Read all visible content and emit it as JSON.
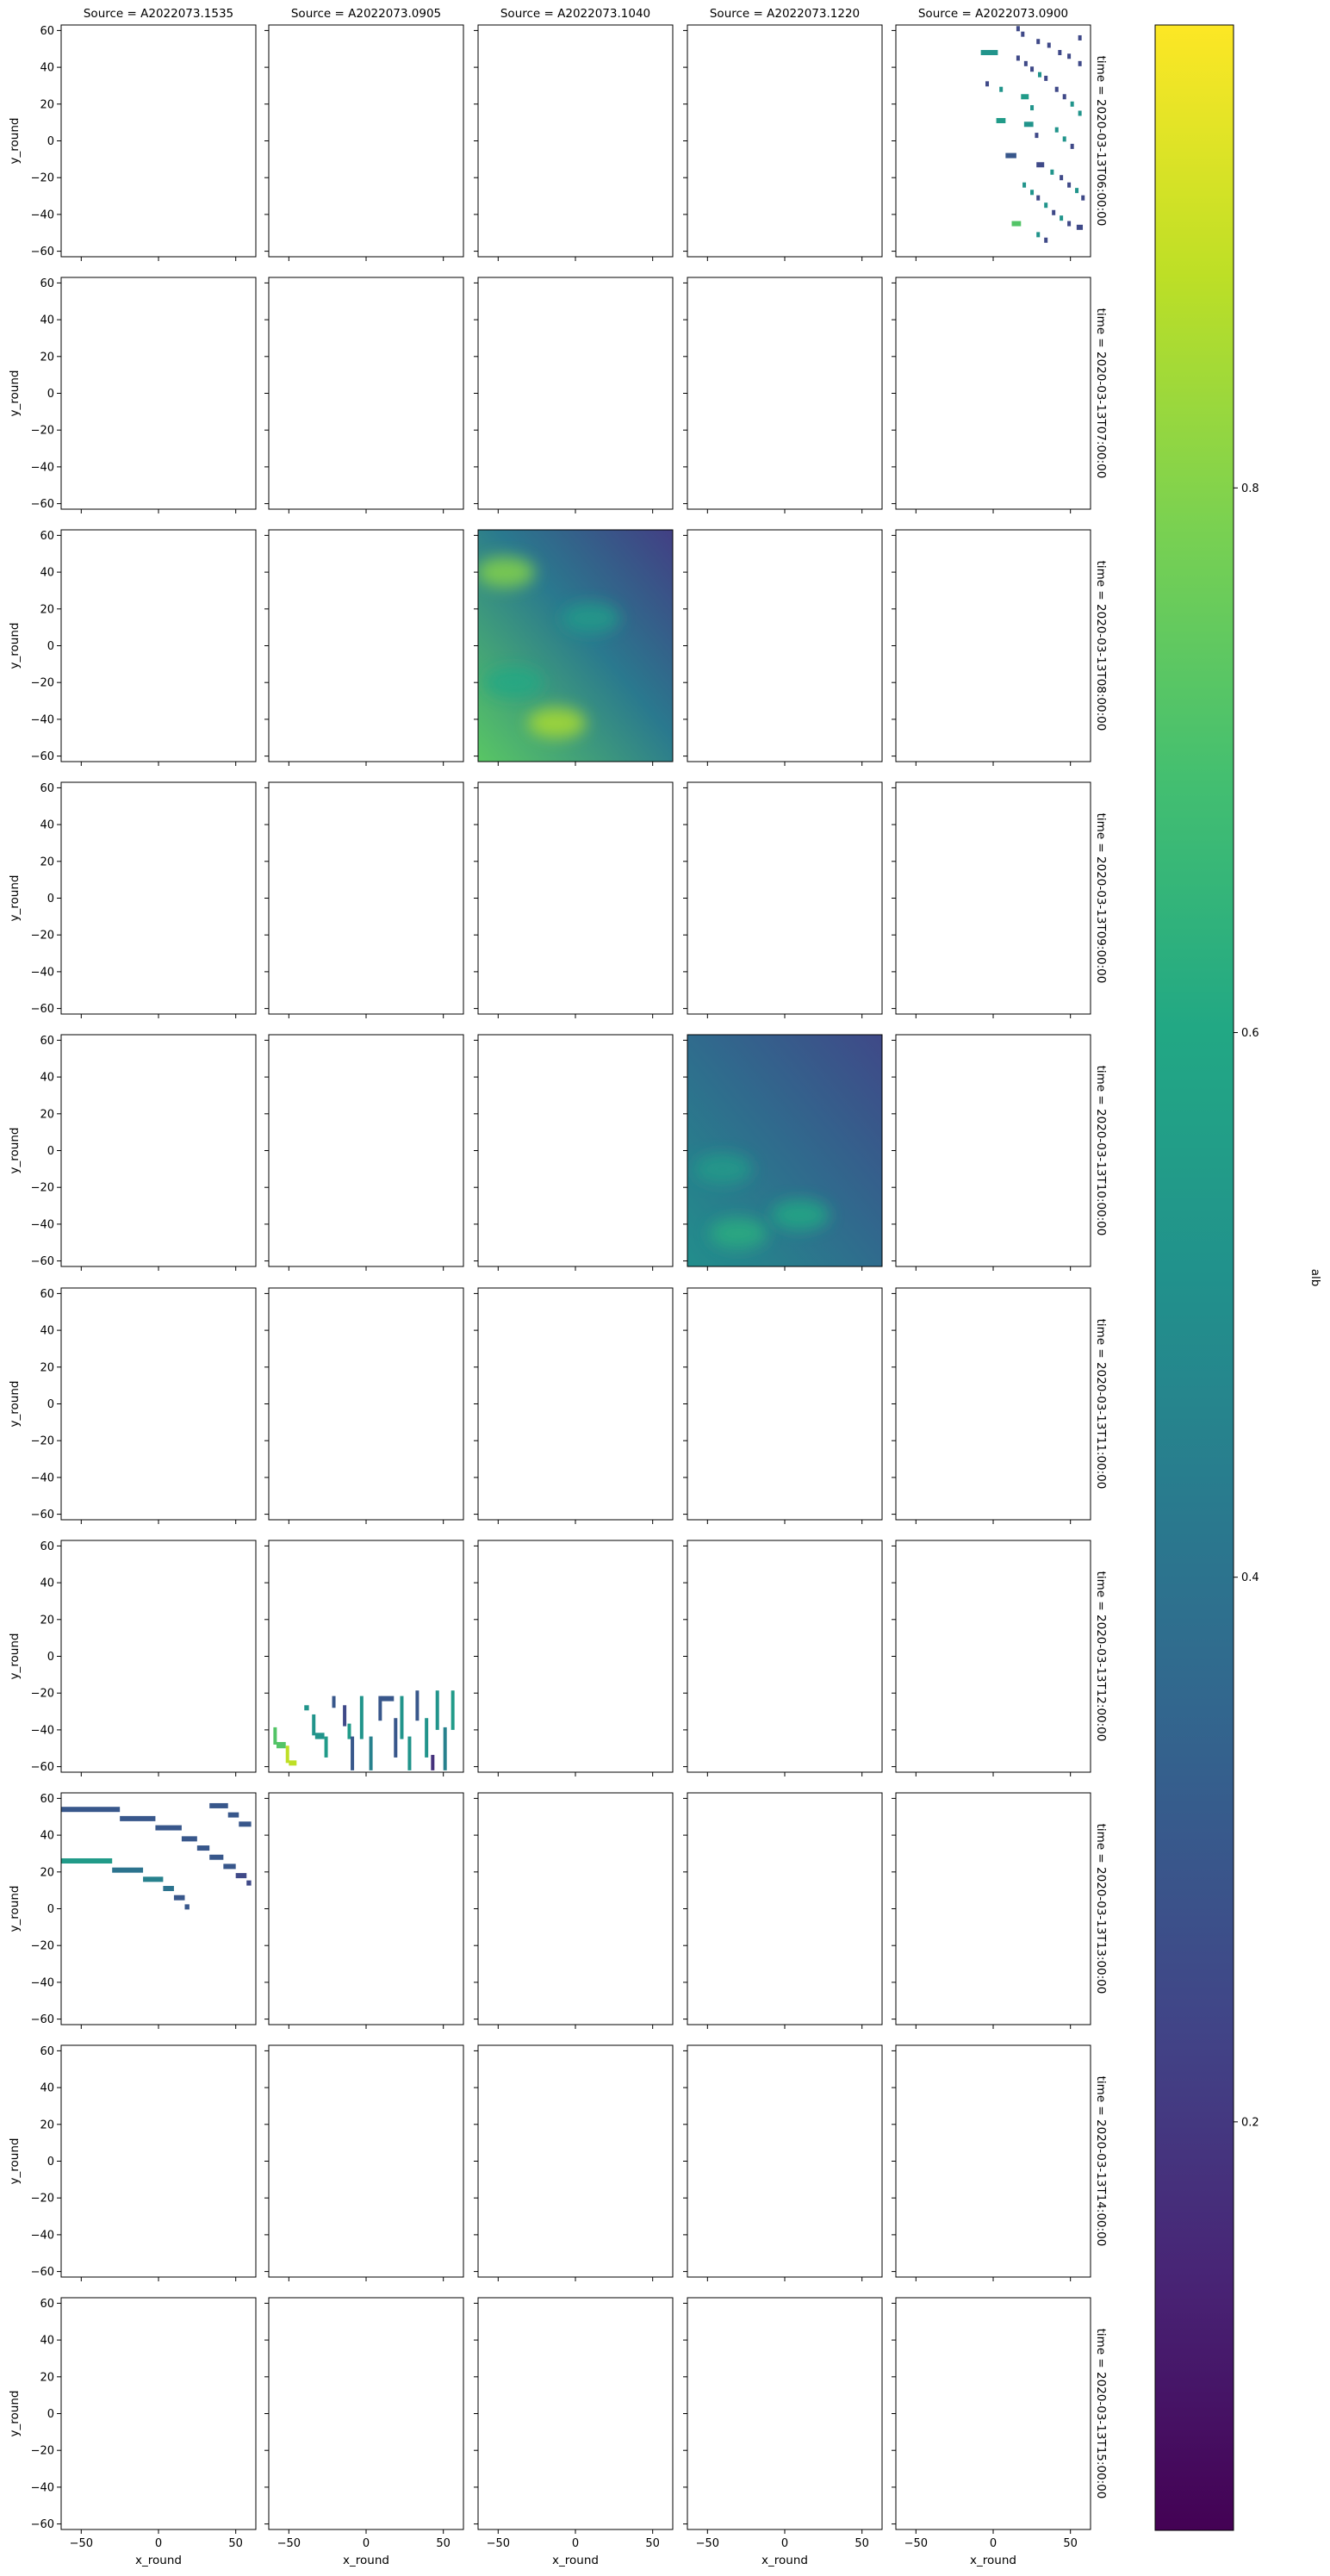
{
  "figure": {
    "col_title_prefix": "Source = ",
    "row_title_prefix": "time = ",
    "colorbar_label": "alb"
  },
  "chart_data": {
    "type": "heatmap",
    "facet_cols": [
      "A2022073.1535",
      "A2022073.0905",
      "A2022073.1040",
      "A2022073.1220",
      "A2022073.0900"
    ],
    "facet_rows": [
      "2020-03-13T06:00:00",
      "2020-03-13T07:00:00",
      "2020-03-13T08:00:00",
      "2020-03-13T09:00:00",
      "2020-03-13T10:00:00",
      "2020-03-13T11:00:00",
      "2020-03-13T12:00:00",
      "2020-03-13T13:00:00",
      "2020-03-13T14:00:00",
      "2020-03-13T15:00:00"
    ],
    "xlabel": "x_round",
    "ylabel": "y_round",
    "xlim": [
      -63,
      63
    ],
    "ylim": [
      -63,
      63
    ],
    "xticks": [
      -50,
      0,
      50
    ],
    "yticks": [
      60,
      40,
      20,
      0,
      -20,
      -40,
      -60
    ],
    "colorbar": {
      "label": "alb",
      "range": [
        0.05,
        0.97
      ],
      "ticks": [
        0.2,
        0.4,
        0.6,
        0.8
      ],
      "colormap": "viridis"
    },
    "panels_with_data": [
      {
        "row": 0,
        "col": 4,
        "kind": "segments",
        "segments": [
          {
            "x": [
              15,
              17
            ],
            "y": 61,
            "v": 0.25
          },
          {
            "x": [
              18,
              20
            ],
            "y": 58,
            "v": 0.25
          },
          {
            "x": [
              55,
              57
            ],
            "y": 56,
            "v": 0.25
          },
          {
            "x": [
              28,
              30
            ],
            "y": 54,
            "v": 0.25
          },
          {
            "x": [
              35,
              37
            ],
            "y": 52,
            "v": 0.25
          },
          {
            "x": [
              -8,
              3
            ],
            "y": 48,
            "v": 0.52
          },
          {
            "x": [
              42,
              44
            ],
            "y": 48,
            "v": 0.25
          },
          {
            "x": [
              48,
              50
            ],
            "y": 46,
            "v": 0.25
          },
          {
            "x": [
              15,
              17
            ],
            "y": 45,
            "v": 0.25
          },
          {
            "x": [
              20,
              22
            ],
            "y": 42,
            "v": 0.25
          },
          {
            "x": [
              55,
              57
            ],
            "y": 42,
            "v": 0.25
          },
          {
            "x": [
              24,
              26
            ],
            "y": 39,
            "v": 0.25
          },
          {
            "x": [
              29,
              31
            ],
            "y": 36,
            "v": 0.52
          },
          {
            "x": [
              33,
              35
            ],
            "y": 34,
            "v": 0.25
          },
          {
            "x": [
              -5,
              -3
            ],
            "y": 31,
            "v": 0.25
          },
          {
            "x": [
              4,
              6
            ],
            "y": 28,
            "v": 0.52
          },
          {
            "x": [
              40,
              42
            ],
            "y": 28,
            "v": 0.25
          },
          {
            "x": [
              18,
              23
            ],
            "y": 24,
            "v": 0.55
          },
          {
            "x": [
              45,
              47
            ],
            "y": 24,
            "v": 0.25
          },
          {
            "x": [
              50,
              52
            ],
            "y": 20,
            "v": 0.52
          },
          {
            "x": [
              24,
              26
            ],
            "y": 18,
            "v": 0.52
          },
          {
            "x": [
              55,
              57
            ],
            "y": 15,
            "v": 0.52
          },
          {
            "x": [
              2,
              8
            ],
            "y": 11,
            "v": 0.55
          },
          {
            "x": [
              20,
              26
            ],
            "y": 9,
            "v": 0.52
          },
          {
            "x": [
              40,
              42
            ],
            "y": 6,
            "v": 0.52
          },
          {
            "x": [
              27,
              29
            ],
            "y": 3,
            "v": 0.25
          },
          {
            "x": [
              45,
              47
            ],
            "y": 1,
            "v": 0.52
          },
          {
            "x": [
              50,
              52
            ],
            "y": -3,
            "v": 0.25
          },
          {
            "x": [
              8,
              15
            ],
            "y": -8,
            "v": 0.3
          },
          {
            "x": [
              28,
              33
            ],
            "y": -13,
            "v": 0.25
          },
          {
            "x": [
              37,
              39
            ],
            "y": -17,
            "v": 0.52
          },
          {
            "x": [
              43,
              45
            ],
            "y": -20,
            "v": 0.25
          },
          {
            "x": [
              48,
              50
            ],
            "y": -24,
            "v": 0.25
          },
          {
            "x": [
              53,
              55
            ],
            "y": -27,
            "v": 0.52
          },
          {
            "x": [
              57,
              59
            ],
            "y": -31,
            "v": 0.25
          },
          {
            "x": [
              19,
              21
            ],
            "y": -24,
            "v": 0.52
          },
          {
            "x": [
              24,
              26
            ],
            "y": -28,
            "v": 0.52
          },
          {
            "x": [
              28,
              30
            ],
            "y": -31,
            "v": 0.25
          },
          {
            "x": [
              33,
              35
            ],
            "y": -35,
            "v": 0.52
          },
          {
            "x": [
              38,
              40
            ],
            "y": -39,
            "v": 0.25
          },
          {
            "x": [
              12,
              18
            ],
            "y": -45,
            "v": 0.72
          },
          {
            "x": [
              43,
              45
            ],
            "y": -42,
            "v": 0.52
          },
          {
            "x": [
              48,
              50
            ],
            "y": -45,
            "v": 0.25
          },
          {
            "x": [
              54,
              58
            ],
            "y": -47,
            "v": 0.25
          },
          {
            "x": [
              28,
              30
            ],
            "y": -51,
            "v": 0.52
          },
          {
            "x": [
              33,
              35
            ],
            "y": -54,
            "v": 0.25
          }
        ]
      },
      {
        "row": 2,
        "col": 2,
        "kind": "field",
        "value_range": [
          0.22,
          0.85
        ],
        "mean": 0.42,
        "bright_regions": [
          {
            "x": -45,
            "y": 40,
            "v": 0.8
          },
          {
            "x": -12,
            "y": -42,
            "v": 0.85
          },
          {
            "x": -40,
            "y": -20,
            "v": 0.6
          },
          {
            "x": 10,
            "y": 15,
            "v": 0.55
          }
        ]
      },
      {
        "row": 4,
        "col": 3,
        "kind": "field",
        "value_range": [
          0.25,
          0.62
        ],
        "mean": 0.36,
        "bright_regions": [
          {
            "x": -30,
            "y": -45,
            "v": 0.62
          },
          {
            "x": 10,
            "y": -35,
            "v": 0.6
          },
          {
            "x": -40,
            "y": -10,
            "v": 0.55
          }
        ]
      },
      {
        "row": 6,
        "col": 1,
        "kind": "segments",
        "segments": [
          {
            "x": [
              -60,
              -58
            ],
            "y": [
              -40,
              -48
            ],
            "v": 0.72
          },
          {
            "x": [
              -58,
              -52
            ],
            "y": [
              -48,
              -50
            ],
            "v": 0.72
          },
          {
            "x": [
              -52,
              -50
            ],
            "y": [
              -50,
              -58
            ],
            "v": 0.88
          },
          {
            "x": [
              -50,
              -45
            ],
            "y": [
              -58,
              -58
            ],
            "v": 0.88
          },
          {
            "x": [
              -40,
              -37
            ],
            "y": [
              -28,
              -28
            ],
            "v": 0.52
          },
          {
            "x": [
              -35,
              -33
            ],
            "y": [
              -33,
              -43
            ],
            "v": 0.52
          },
          {
            "x": [
              -33,
              -27
            ],
            "y": [
              -43,
              -45
            ],
            "v": 0.52
          },
          {
            "x": [
              -27,
              -25
            ],
            "y": [
              -45,
              -55
            ],
            "v": 0.55
          },
          {
            "x": [
              -22,
              -20
            ],
            "y": [
              -23,
              -28
            ],
            "v": 0.3
          },
          {
            "x": [
              -15,
              -13
            ],
            "y": [
              -28,
              -38
            ],
            "v": 0.25
          },
          {
            "x": [
              -12,
              -10
            ],
            "y": [
              -38,
              -45
            ],
            "v": 0.55
          },
          {
            "x": [
              -10,
              -8
            ],
            "y": [
              -45,
              -62
            ],
            "v": 0.3
          },
          {
            "x": [
              -4,
              -2
            ],
            "y": [
              -23,
              -45
            ],
            "v": 0.52
          },
          {
            "x": [
              2,
              4
            ],
            "y": [
              -45,
              -62
            ],
            "v": 0.45
          },
          {
            "x": [
              8,
              10
            ],
            "y": [
              -23,
              -35
            ],
            "v": 0.3
          },
          {
            "x": [
              10,
              18
            ],
            "y": [
              -23,
              -23
            ],
            "v": 0.3
          },
          {
            "x": [
              18,
              20
            ],
            "y": [
              -35,
              -55
            ],
            "v": 0.3
          },
          {
            "x": [
              22,
              24
            ],
            "y": [
              -23,
              -45
            ],
            "v": 0.52
          },
          {
            "x": [
              27,
              29
            ],
            "y": [
              -45,
              -62
            ],
            "v": 0.52
          },
          {
            "x": [
              32,
              34
            ],
            "y": [
              -20,
              -35
            ],
            "v": 0.3
          },
          {
            "x": [
              38,
              40
            ],
            "y": [
              -35,
              -55
            ],
            "v": 0.52
          },
          {
            "x": [
              42,
              44
            ],
            "y": [
              -55,
              -62
            ],
            "v": 0.18
          },
          {
            "x": [
              45,
              47
            ],
            "y": [
              -20,
              -40
            ],
            "v": 0.52
          },
          {
            "x": [
              50,
              52
            ],
            "y": [
              -40,
              -62
            ],
            "v": 0.45
          },
          {
            "x": [
              55,
              57
            ],
            "y": [
              -20,
              -40
            ],
            "v": 0.55
          }
        ]
      },
      {
        "row": 7,
        "col": 0,
        "kind": "segments",
        "segments": [
          {
            "x": [
              -63,
              -25
            ],
            "y": 54,
            "v": 0.3
          },
          {
            "x": [
              -25,
              -2
            ],
            "y": 49,
            "v": 0.3
          },
          {
            "x": [
              -2,
              15
            ],
            "y": 44,
            "v": 0.3
          },
          {
            "x": [
              15,
              25
            ],
            "y": 38,
            "v": 0.3
          },
          {
            "x": [
              25,
              33
            ],
            "y": 33,
            "v": 0.3
          },
          {
            "x": [
              33,
              42
            ],
            "y": 28,
            "v": 0.3
          },
          {
            "x": [
              42,
              50
            ],
            "y": 23,
            "v": 0.3
          },
          {
            "x": [
              50,
              57
            ],
            "y": 18,
            "v": 0.25
          },
          {
            "x": [
              57,
              60
            ],
            "y": 14,
            "v": 0.25
          },
          {
            "x": [
              33,
              45
            ],
            "y": 56,
            "v": 0.3
          },
          {
            "x": [
              45,
              52
            ],
            "y": 51,
            "v": 0.3
          },
          {
            "x": [
              52,
              60
            ],
            "y": 46,
            "v": 0.3
          },
          {
            "x": [
              -63,
              -30
            ],
            "y": 26,
            "v": 0.55
          },
          {
            "x": [
              -30,
              -10
            ],
            "y": 21,
            "v": 0.4
          },
          {
            "x": [
              -10,
              3
            ],
            "y": 16,
            "v": 0.45
          },
          {
            "x": [
              3,
              10
            ],
            "y": 11,
            "v": 0.4
          },
          {
            "x": [
              10,
              17
            ],
            "y": 6,
            "v": 0.3
          },
          {
            "x": [
              17,
              20
            ],
            "y": 1,
            "v": 0.3
          }
        ]
      }
    ]
  }
}
